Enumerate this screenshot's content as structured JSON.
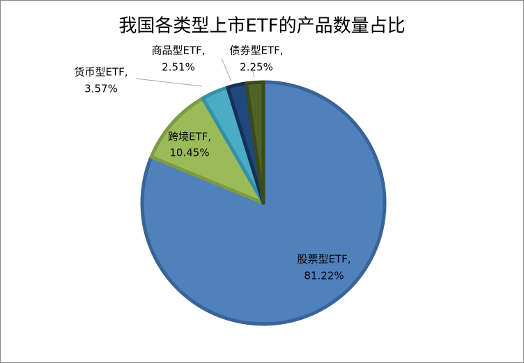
{
  "chart_data": {
    "type": "pie",
    "title": "我国各类型上市ETF的产品数量占比",
    "categories": [
      "股票型ETF,",
      "跨境ETF,",
      "货币型ETF,",
      "商品型ETF,",
      "债券型ETF,"
    ],
    "values": [
      81.22,
      10.45,
      3.57,
      2.51,
      2.25
    ],
    "value_labels": [
      "81.22%",
      "10.45%",
      "3.57%",
      "2.51%",
      "2.25%"
    ],
    "colors": [
      "#4f81bd",
      "#9bbb59",
      "#4bacc6",
      "#1f497d",
      "#4f6228"
    ],
    "edge_colors": [
      "#3a6496",
      "#7f9a45",
      "#3590a8",
      "#162f55",
      "#3a4a1c"
    ],
    "start_angle": 90,
    "direction": "clockwise"
  }
}
